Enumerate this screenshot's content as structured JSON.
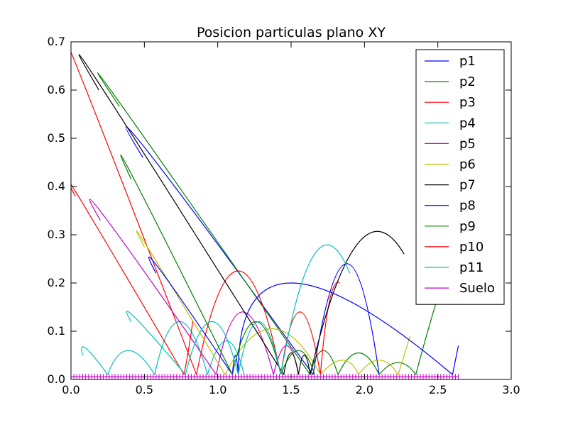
{
  "chart_data": {
    "type": "line",
    "title": "Posicion particulas plano XY",
    "xlabel": "",
    "ylabel": "",
    "xlim": [
      0.0,
      3.0
    ],
    "ylim": [
      0.0,
      0.7
    ],
    "xticks": [
      "0.0",
      "0.5",
      "1.0",
      "1.5",
      "2.0",
      "2.5",
      "3.0"
    ],
    "yticks": [
      "0.0",
      "0.1",
      "0.2",
      "0.3",
      "0.4",
      "0.5",
      "0.6",
      "0.7"
    ],
    "grid": false,
    "legend_position": "top-right",
    "series": [
      {
        "name": "p1",
        "color": "#0000ff",
        "arcs": [
          [
            0.49,
            0.46,
            0.53,
            0.47,
            1.65,
            0.01
          ],
          [
            1.65,
            0.01,
            1.88,
            0.24,
            2.1,
            0.01
          ]
        ]
      },
      {
        "name": "p2",
        "color": "#008000",
        "arcs": [
          [
            0.33,
            0.566,
            0.35,
            0.566,
            1.63,
            0.01
          ],
          [
            1.63,
            0.01,
            1.72,
            0.06,
            1.82,
            0.01
          ],
          [
            1.82,
            0.01,
            1.96,
            0.055,
            2.1,
            0.01
          ],
          [
            2.1,
            0.01,
            2.23,
            0.035,
            2.35,
            0.01
          ],
          [
            2.35,
            0.01,
            2.45,
            0.12,
            2.56,
            0.23
          ]
        ]
      },
      {
        "name": "p3",
        "color": "#ff0000",
        "arcs": [
          [
            0.0,
            0.655,
            0.025,
            0.66,
            0.855,
            0.01
          ],
          [
            0.855,
            0.01,
            1.14,
            0.225,
            1.43,
            0.01
          ],
          [
            1.43,
            0.01,
            1.56,
            0.14,
            1.7,
            0.01
          ],
          [
            1.7,
            0.01,
            1.76,
            0.16,
            1.83,
            0.2
          ]
        ]
      },
      {
        "name": "p4",
        "color": "#00c0c0",
        "arcs": [
          [
            0.08,
            0.05,
            0.1,
            0.065,
            0.25,
            0.01
          ],
          [
            0.25,
            0.01,
            0.39,
            0.06,
            0.57,
            0.01
          ],
          [
            0.57,
            0.01,
            0.74,
            0.12,
            0.93,
            0.01
          ],
          [
            0.93,
            0.01,
            1.06,
            0.08,
            1.18,
            0.01
          ]
        ]
      },
      {
        "name": "p5",
        "color": "#c000c0",
        "arcs": [
          [
            0.2,
            0.33,
            0.235,
            0.335,
            0.99,
            0.01
          ],
          [
            0.99,
            0.01,
            1.17,
            0.14,
            1.38,
            0.01
          ],
          [
            1.38,
            0.01,
            1.47,
            0.07,
            1.55,
            0.01
          ]
        ]
      },
      {
        "name": "p6",
        "color": "#c0c000",
        "arcs": [
          [
            0.5,
            0.275,
            0.52,
            0.275,
            1.05,
            0.01
          ],
          [
            1.05,
            0.01,
            1.37,
            0.105,
            1.7,
            0.01
          ],
          [
            1.7,
            0.01,
            1.85,
            0.04,
            1.96,
            0.01
          ],
          [
            1.96,
            0.01,
            2.1,
            0.04,
            2.23,
            0.01
          ],
          [
            2.23,
            0.01,
            2.27,
            0.05,
            2.31,
            0.09
          ]
        ]
      },
      {
        "name": "p7",
        "color": "#000000",
        "arcs": [
          [
            0.19,
            0.6,
            0.22,
            0.6,
            1.45,
            0.01
          ],
          [
            1.45,
            0.01,
            1.5,
            0.055,
            1.55,
            0.01
          ],
          [
            1.55,
            0.01,
            1.59,
            0.05,
            1.63,
            0.01
          ],
          [
            1.63,
            0.01,
            1.95,
            0.28,
            2.27,
            0.26
          ]
        ]
      },
      {
        "name": "p8",
        "color": "#0000ff",
        "arcs": [
          [
            0.58,
            0.22,
            0.6,
            0.23,
            1.1,
            0.01
          ],
          [
            1.1,
            0.01,
            1.12,
            0.05,
            1.14,
            0.01
          ],
          [
            1.14,
            0.01,
            1.5,
            0.2,
            2.6,
            0.01
          ],
          [
            2.6,
            0.01,
            2.62,
            0.04,
            2.64,
            0.07
          ]
        ]
      },
      {
        "name": "p9",
        "color": "#008000",
        "arcs": [
          [
            0.41,
            0.415,
            0.43,
            0.415,
            1.1,
            0.01
          ],
          [
            1.1,
            0.01,
            1.26,
            0.12,
            1.43,
            0.01
          ],
          [
            1.43,
            0.01,
            1.55,
            0.06,
            1.66,
            0.01
          ]
        ]
      },
      {
        "name": "p10",
        "color": "#ff0000",
        "arcs": [
          [
            0.03,
            0.38,
            0.05,
            0.38,
            0.77,
            0.01
          ],
          [
            0.77,
            0.01,
            0.8,
            0.06,
            0.83,
            0.12
          ]
        ]
      },
      {
        "name": "p11",
        "color": "#00c0c0",
        "arcs": [
          [
            0.41,
            0.12,
            0.43,
            0.13,
            0.78,
            0.01
          ],
          [
            0.78,
            0.01,
            0.96,
            0.12,
            1.14,
            0.01
          ],
          [
            1.14,
            0.01,
            1.28,
            0.12,
            1.43,
            0.01
          ],
          [
            1.43,
            0.01,
            1.66,
            0.26,
            1.9,
            0.22
          ]
        ]
      },
      {
        "name": "Suelo",
        "color": "#c000c0",
        "line": {
          "x0": 0.0,
          "x1": 2.64,
          "y": 0.0055,
          "markers": true
        }
      }
    ]
  }
}
